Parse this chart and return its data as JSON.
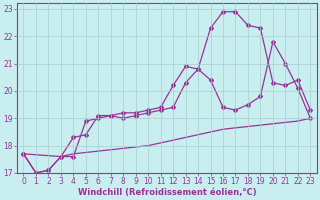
{
  "xlabel": "Windchill (Refroidissement éolien,°C)",
  "background_color": "#c8eef0",
  "line_color": "#993399",
  "grid_color": "#aacccc",
  "xlim": [
    -0.5,
    23.5
  ],
  "ylim": [
    17,
    23.2
  ],
  "xticks": [
    0,
    1,
    2,
    3,
    4,
    5,
    6,
    7,
    8,
    9,
    10,
    11,
    12,
    13,
    14,
    15,
    16,
    17,
    18,
    19,
    20,
    21,
    22,
    23
  ],
  "yticks": [
    17,
    18,
    19,
    20,
    21,
    22,
    23
  ],
  "line1_x": [
    0,
    1,
    2,
    3,
    4,
    5,
    6,
    7,
    8,
    9,
    10,
    11,
    12,
    13,
    14,
    15,
    16,
    17,
    18,
    19,
    20,
    21,
    22,
    23
  ],
  "line1_y": [
    17.7,
    17.0,
    17.1,
    17.6,
    18.3,
    18.4,
    19.1,
    19.1,
    19.2,
    19.2,
    19.3,
    19.4,
    20.2,
    20.9,
    20.8,
    22.3,
    22.9,
    22.9,
    22.4,
    22.3,
    20.3,
    20.2,
    20.4,
    19.3
  ],
  "line2_x": [
    0,
    1,
    2,
    3,
    4,
    5,
    6,
    7,
    8,
    9,
    10,
    11,
    12,
    13,
    14,
    15,
    16,
    17,
    18,
    19,
    20,
    21,
    22,
    23
  ],
  "line2_y": [
    17.7,
    17.0,
    17.1,
    17.6,
    17.6,
    18.9,
    19.0,
    19.1,
    19.0,
    19.1,
    19.2,
    19.3,
    19.4,
    20.3,
    20.8,
    20.4,
    19.4,
    19.3,
    19.5,
    19.8,
    21.8,
    21.0,
    20.1,
    19.0
  ],
  "line3_x": [
    0,
    3,
    4,
    5,
    6,
    7,
    8,
    9,
    10,
    11,
    12,
    13,
    14,
    15,
    16,
    17,
    18,
    19,
    20,
    21,
    22,
    23
  ],
  "line3_y": [
    17.7,
    17.6,
    17.7,
    17.75,
    17.8,
    17.85,
    17.9,
    17.95,
    18.0,
    18.1,
    18.2,
    18.3,
    18.4,
    18.5,
    18.6,
    18.65,
    18.7,
    18.75,
    18.8,
    18.85,
    18.9,
    19.0
  ],
  "marker": "D",
  "marker_size": 2.0,
  "line_width": 0.9,
  "tick_fontsize": 5.5,
  "label_fontsize": 6.0
}
